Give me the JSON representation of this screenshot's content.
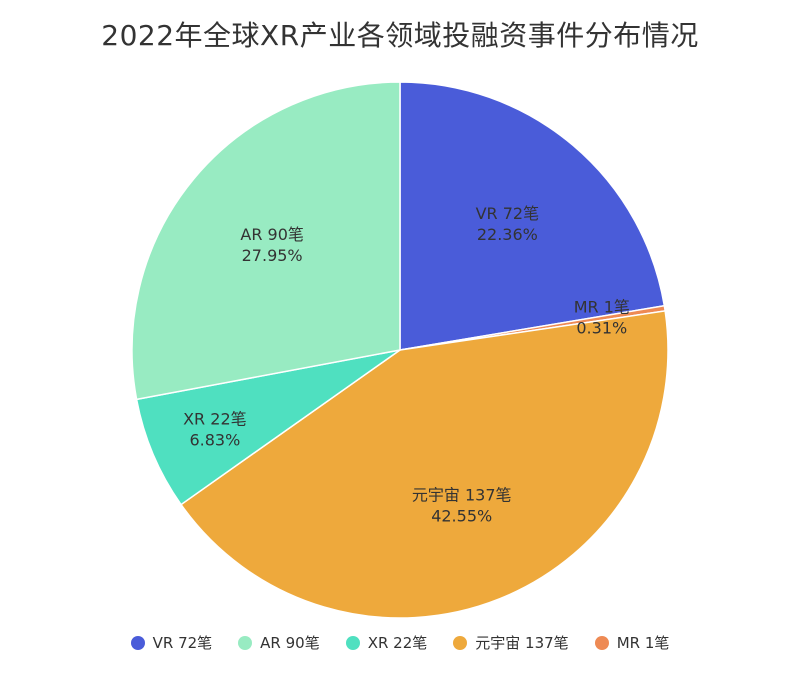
{
  "chart_data": {
    "type": "pie",
    "title": "2022年全球XR产业各领域投融资事件分布情况",
    "slices": [
      {
        "name": "VR",
        "count_label": "72笔",
        "value": 72,
        "percent": "22.36%",
        "color": "#4a5cd9"
      },
      {
        "name": "MR",
        "count_label": "1笔",
        "value": 1,
        "percent": "0.31%",
        "color": "#ee8a54"
      },
      {
        "name": "元宇宙",
        "count_label": "137笔",
        "value": 137,
        "percent": "42.55%",
        "color": "#eea93c"
      },
      {
        "name": "XR",
        "count_label": "22笔",
        "value": 22,
        "percent": "6.83%",
        "color": "#4fe0c0"
      },
      {
        "name": "AR",
        "count_label": "90笔",
        "value": 90,
        "percent": "27.95%",
        "color": "#98ebc2"
      }
    ],
    "legend": [
      {
        "label": "VR 72笔",
        "color": "#4a5cd9"
      },
      {
        "label": "AR 90笔",
        "color": "#98ebc2"
      },
      {
        "label": "XR 22笔",
        "color": "#4fe0c0"
      },
      {
        "label": "元宇宙 137笔",
        "color": "#eea93c"
      },
      {
        "label": "MR 1笔",
        "color": "#ee8a54"
      }
    ],
    "legend_position": "bottom"
  }
}
